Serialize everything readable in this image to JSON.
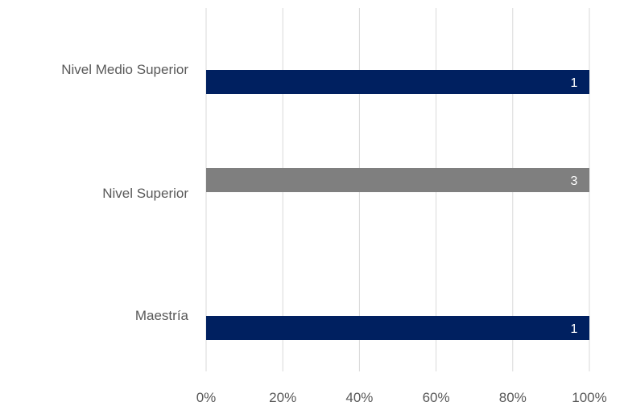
{
  "chart_data": {
    "type": "bar",
    "orientation": "horizontal",
    "stacked_percent": true,
    "categories": [
      "Nivel Medio Superior",
      "Nivel Superior",
      "Maestría"
    ],
    "values": [
      1,
      3,
      1
    ],
    "percent_values": [
      100,
      100,
      100
    ],
    "data_labels": [
      "1",
      "3",
      "1"
    ],
    "bar_colors": [
      "#002060",
      "#7f7f7f",
      "#002060"
    ],
    "x_ticks": [
      "0%",
      "20%",
      "40%",
      "60%",
      "80%",
      "100%"
    ],
    "xlim": [
      0,
      100
    ],
    "grid": "vertical",
    "legend": "none",
    "title": "",
    "xlabel": "",
    "ylabel": ""
  }
}
